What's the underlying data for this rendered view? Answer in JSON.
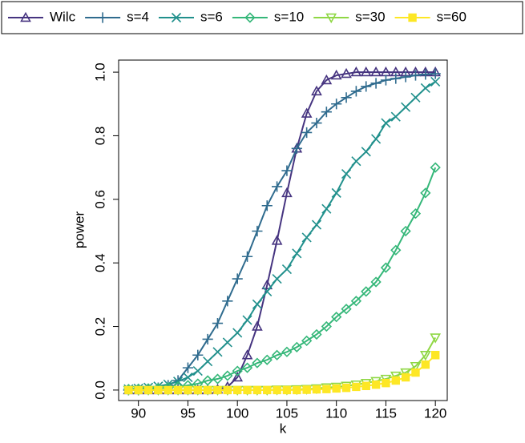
{
  "chart_data": {
    "type": "line",
    "xlabel": "k",
    "ylabel": "power",
    "x": [
      89,
      90,
      91,
      92,
      93,
      94,
      95,
      96,
      97,
      98,
      99,
      100,
      101,
      102,
      103,
      104,
      105,
      106,
      107,
      108,
      109,
      110,
      111,
      112,
      113,
      114,
      115,
      116,
      117,
      118,
      119,
      120
    ],
    "xlim": [
      88,
      121.2
    ],
    "ylim": [
      -0.033,
      1.038
    ],
    "xticks": [
      90,
      95,
      100,
      105,
      110,
      115,
      120
    ],
    "yticks": [
      {
        "value": 0,
        "label": "0.0"
      },
      0.2,
      0.4,
      0.6,
      0.8,
      {
        "value": 1,
        "label": "1.0"
      }
    ],
    "legend": "top",
    "series": [
      {
        "name": "Wilc",
        "color": "#463480",
        "marker": "triangle",
        "values": [
          0,
          0,
          0,
          0,
          0,
          0,
          0,
          0,
          0,
          0.002,
          0.01,
          0.04,
          0.11,
          0.2,
          0.33,
          0.47,
          0.62,
          0.76,
          0.87,
          0.94,
          0.975,
          0.99,
          0.995,
          1,
          1,
          1,
          1,
          1,
          1,
          1,
          1,
          1
        ]
      },
      {
        "name": "s=4",
        "color": "#2f6b8e",
        "marker": "plus",
        "values": [
          0,
          0,
          0.003,
          0.007,
          0.015,
          0.03,
          0.07,
          0.11,
          0.16,
          0.21,
          0.28,
          0.35,
          0.42,
          0.5,
          0.58,
          0.64,
          0.69,
          0.76,
          0.81,
          0.84,
          0.875,
          0.9,
          0.92,
          0.94,
          0.955,
          0.965,
          0.975,
          0.98,
          0.985,
          0.99,
          0.993,
          0.995
        ]
      },
      {
        "name": "s=6",
        "color": "#21908c",
        "marker": "cross",
        "values": [
          0.003,
          0.005,
          0.008,
          0.012,
          0.018,
          0.027,
          0.04,
          0.06,
          0.09,
          0.12,
          0.15,
          0.18,
          0.22,
          0.27,
          0.31,
          0.35,
          0.38,
          0.43,
          0.48,
          0.52,
          0.57,
          0.62,
          0.68,
          0.72,
          0.75,
          0.79,
          0.84,
          0.86,
          0.89,
          0.92,
          0.95,
          0.97
        ]
      },
      {
        "name": "s=10",
        "color": "#35b779",
        "marker": "diamond",
        "values": [
          0.003,
          0.004,
          0.005,
          0.006,
          0.008,
          0.01,
          0.015,
          0.02,
          0.03,
          0.035,
          0.045,
          0.06,
          0.07,
          0.085,
          0.095,
          0.11,
          0.12,
          0.135,
          0.155,
          0.175,
          0.2,
          0.23,
          0.255,
          0.28,
          0.31,
          0.34,
          0.385,
          0.44,
          0.5,
          0.555,
          0.62,
          0.7
        ]
      },
      {
        "name": "s=30",
        "color": "#8fd744",
        "marker": "down-triangle",
        "values": [
          0,
          0,
          0,
          0,
          0,
          0,
          0,
          0,
          0,
          0,
          0,
          0,
          0,
          0,
          0,
          0.001,
          0.001,
          0.002,
          0.003,
          0.005,
          0.008,
          0.01,
          0.013,
          0.017,
          0.022,
          0.028,
          0.035,
          0.045,
          0.055,
          0.075,
          0.11,
          0.165
        ]
      },
      {
        "name": "s=60",
        "color": "#fde725",
        "marker": "square",
        "values": [
          0,
          0,
          0,
          0,
          0,
          0,
          0,
          0,
          0,
          0,
          0,
          0,
          0,
          0,
          0,
          0,
          0,
          0,
          0.001,
          0.002,
          0.003,
          0.005,
          0.007,
          0.01,
          0.013,
          0.017,
          0.022,
          0.03,
          0.04,
          0.055,
          0.08,
          0.11
        ]
      }
    ]
  }
}
